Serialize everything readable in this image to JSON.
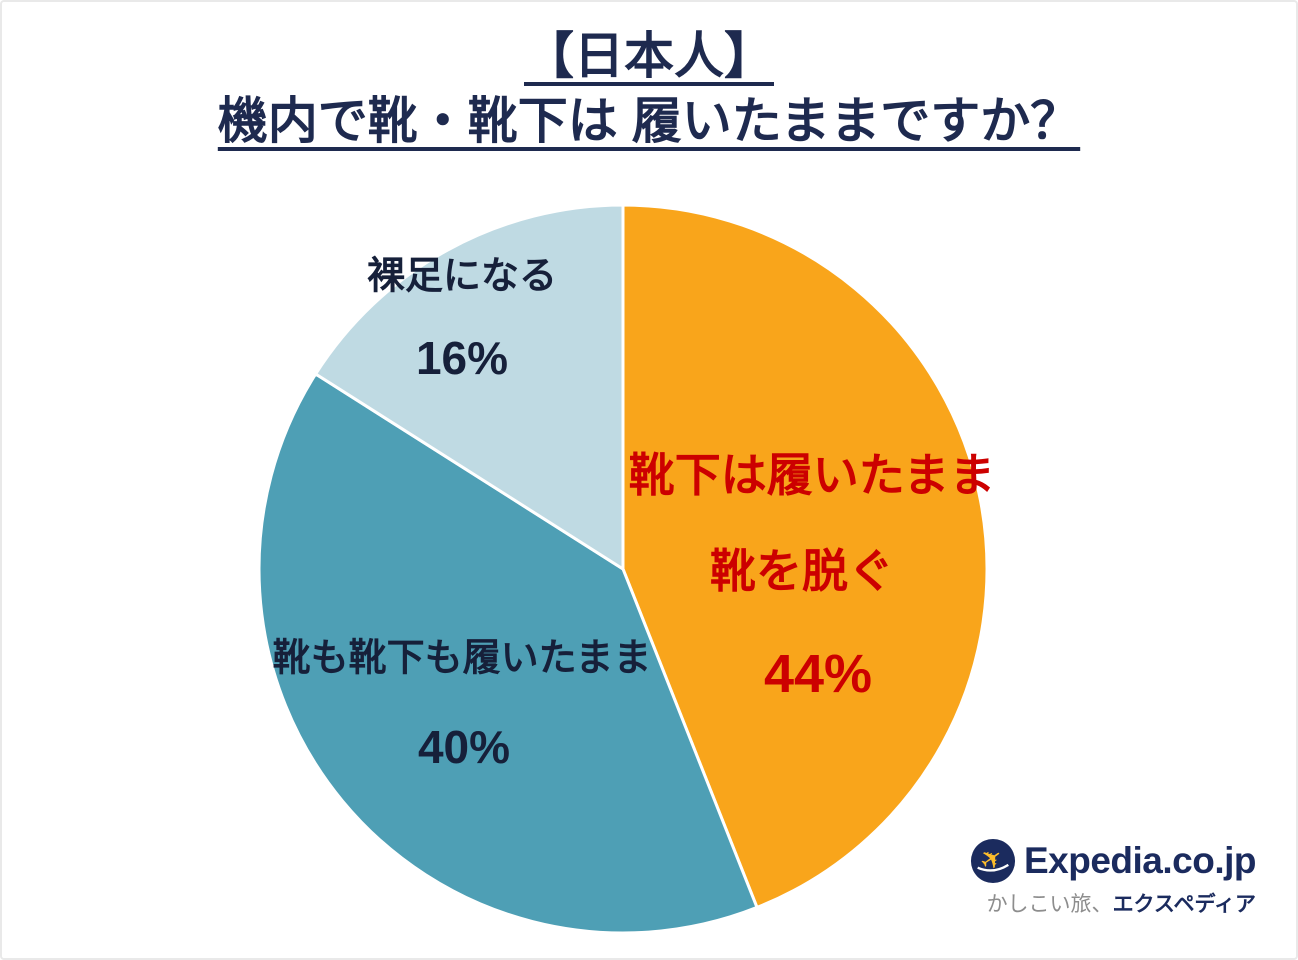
{
  "title": {
    "line1": "【日本人】",
    "line2": "機内で靴・靴下は 履いたままですか？"
  },
  "chart_data": {
    "type": "pie",
    "title": "【日本人】機内で靴・靴下は履いたままですか？",
    "direction": "clockwise",
    "start_angle": "top",
    "total": 100,
    "slices": [
      {
        "label": "靴下は履いたまま靴を脱ぐ",
        "label_line1": "靴下は履いたまま",
        "label_line2": "靴を脱ぐ",
        "value": 44,
        "pct_text": "44%",
        "color": "#F9A51B",
        "text_color": "#CC0000"
      },
      {
        "label": "靴も靴下も履いたまま",
        "value": 40,
        "pct_text": "40%",
        "color": "#4E9FB5",
        "text_color": "#16203A"
      },
      {
        "label": "裸足になる",
        "value": 16,
        "pct_text": "16%",
        "color": "#BFDAE3",
        "text_color": "#16203A"
      }
    ]
  },
  "logo": {
    "brand": "Expedia.co.jp",
    "tagline_light": "かしこい旅、",
    "tagline_bold": "エクスペディア",
    "plane_icon_color": "#FDBD2B",
    "circle_color": "#1B2B5E"
  }
}
